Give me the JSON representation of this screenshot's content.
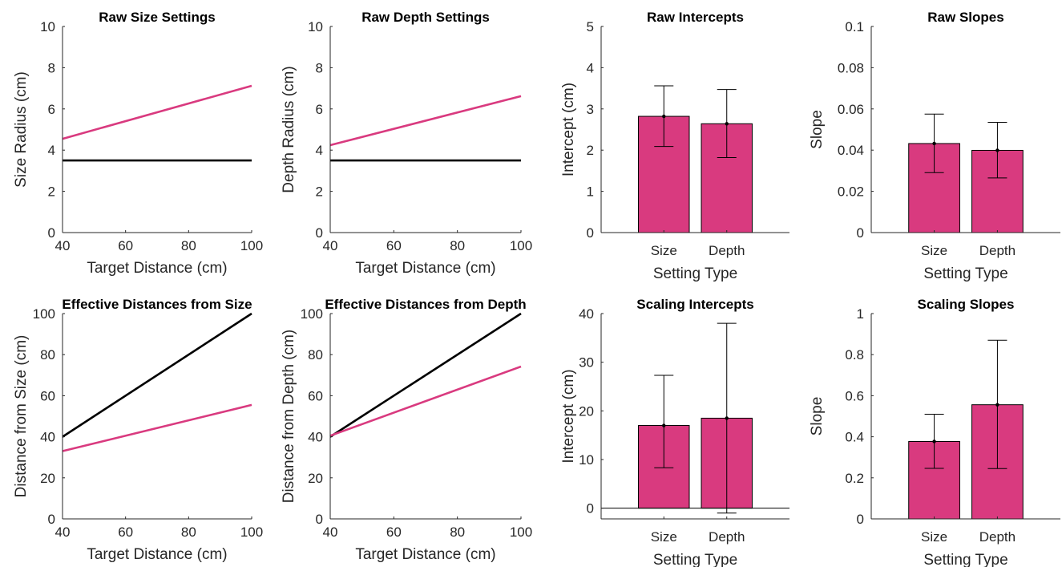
{
  "colors": {
    "accent": "#d93a7f",
    "reference": "#000000",
    "axis": "#262626"
  },
  "chart_data": [
    {
      "type": "line",
      "title": "Raw Size Settings",
      "xlabel": "Target Distance (cm)",
      "ylabel": "Size Radius (cm)",
      "xlim": [
        40,
        100
      ],
      "ylim": [
        0,
        10
      ],
      "xticks": [
        40,
        60,
        80,
        100
      ],
      "yticks": [
        0,
        2,
        4,
        6,
        8,
        10
      ],
      "grid": false,
      "series": [
        {
          "color": "#d93a7f",
          "x": [
            40,
            100
          ],
          "y": [
            4.55,
            7.12
          ]
        },
        {
          "color": "#000000",
          "x": [
            40,
            100
          ],
          "y": [
            3.5,
            3.5
          ]
        }
      ]
    },
    {
      "type": "line",
      "title": "Raw Depth Settings",
      "xlabel": "Target Distance (cm)",
      "ylabel": "Depth Radius (cm)",
      "xlim": [
        40,
        100
      ],
      "ylim": [
        0,
        10
      ],
      "xticks": [
        40,
        60,
        80,
        100
      ],
      "yticks": [
        0,
        2,
        4,
        6,
        8,
        10
      ],
      "grid": false,
      "series": [
        {
          "color": "#d93a7f",
          "x": [
            40,
            100
          ],
          "y": [
            4.24,
            6.62
          ]
        },
        {
          "color": "#000000",
          "x": [
            40,
            100
          ],
          "y": [
            3.5,
            3.5
          ]
        }
      ]
    },
    {
      "type": "bar",
      "title": "Raw Intercepts",
      "xlabel": "Setting Type",
      "ylabel": "Intercept (cm)",
      "categories": [
        "Size",
        "Depth"
      ],
      "ylim": [
        0,
        5
      ],
      "yticks": [
        "0",
        "1",
        "2",
        "3",
        "4",
        "5"
      ],
      "values": [
        2.82,
        2.64
      ],
      "error_low": [
        2.09,
        1.82
      ],
      "error_high": [
        3.56,
        3.47
      ]
    },
    {
      "type": "bar",
      "title": "Raw Slopes",
      "xlabel": "Setting Type",
      "ylabel": "Slope",
      "categories": [
        "Size",
        "Depth"
      ],
      "ylim": [
        0,
        0.1
      ],
      "yticks": [
        "0",
        "0.02",
        "0.04",
        "0.06",
        "0.08",
        "0.1"
      ],
      "values": [
        0.0432,
        0.0399
      ],
      "error_low": [
        0.0291,
        0.0265
      ],
      "error_high": [
        0.0575,
        0.0535
      ]
    },
    {
      "type": "line",
      "title": "Effective Distances from Size",
      "xlabel": "Target Distance (cm)",
      "ylabel": "Distance from Size (cm)",
      "xlim": [
        40,
        100
      ],
      "ylim": [
        0,
        100
      ],
      "xticks": [
        40,
        60,
        80,
        100
      ],
      "yticks": [
        0,
        20,
        40,
        60,
        80,
        100
      ],
      "grid": false,
      "series": [
        {
          "color": "#000000",
          "x": [
            40,
            100
          ],
          "y": [
            40,
            100
          ]
        },
        {
          "color": "#d93a7f",
          "x": [
            40,
            100
          ],
          "y": [
            33,
            55.5
          ]
        }
      ]
    },
    {
      "type": "line",
      "title": "Effective Distances from Depth",
      "xlabel": "Target Distance (cm)",
      "ylabel": "Distance from Depth (cm)",
      "xlim": [
        40,
        100
      ],
      "ylim": [
        0,
        100
      ],
      "xticks": [
        40,
        60,
        80,
        100
      ],
      "yticks": [
        0,
        20,
        40,
        60,
        80,
        100
      ],
      "grid": false,
      "series": [
        {
          "color": "#000000",
          "x": [
            40,
            100
          ],
          "y": [
            40,
            100
          ]
        },
        {
          "color": "#d93a7f",
          "x": [
            40,
            100
          ],
          "y": [
            40.5,
            74.2
          ]
        }
      ]
    },
    {
      "type": "bar",
      "title": "Scaling Intercepts",
      "xlabel": "Setting Type",
      "ylabel": "Intercept (cm)",
      "categories": [
        "Size",
        "Depth"
      ],
      "ylim": [
        -2.2,
        40
      ],
      "yticks": [
        "0",
        "10",
        "20",
        "30",
        "40"
      ],
      "zero_line": true,
      "values": [
        17.0,
        18.5
      ],
      "error_low": [
        8.3,
        -1.0
      ],
      "error_high": [
        27.3,
        38.0
      ]
    },
    {
      "type": "bar",
      "title": "Scaling Slopes",
      "xlabel": "Setting Type",
      "ylabel": "Slope",
      "categories": [
        "Size",
        "Depth"
      ],
      "ylim": [
        0,
        1
      ],
      "yticks": [
        "0",
        "0.2",
        "0.4",
        "0.6",
        "0.8",
        "1"
      ],
      "values": [
        0.377,
        0.556
      ],
      "error_low": [
        0.246,
        0.245
      ],
      "error_high": [
        0.51,
        0.87
      ]
    }
  ]
}
